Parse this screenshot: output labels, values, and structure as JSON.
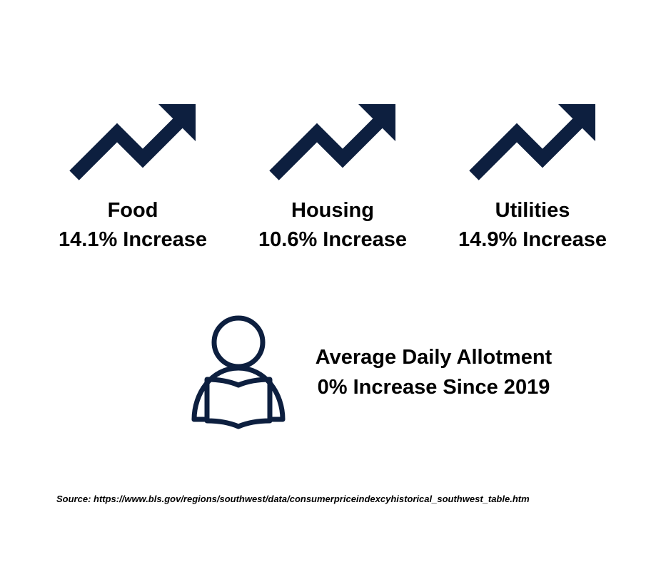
{
  "colors": {
    "icon": "#0d1f3f",
    "text": "#000000",
    "background": "#ffffff"
  },
  "stats": [
    {
      "icon": "trending-up-arrow-icon",
      "label": "Food",
      "value": "14.1% Increase"
    },
    {
      "icon": "trending-up-arrow-icon",
      "label": "Housing",
      "value": "10.6% Increase"
    },
    {
      "icon": "trending-up-arrow-icon",
      "label": "Utilities",
      "value": "14.9% Increase"
    }
  ],
  "allotment": {
    "icon": "person-reading-book-icon",
    "title": "Average Daily Allotment",
    "subtitle": "0% Increase Since 2019"
  },
  "source": "Source: https://www.bls.gov/regions/southwest/data/consumerpriceindexcyhistorical_southwest_table.htm"
}
